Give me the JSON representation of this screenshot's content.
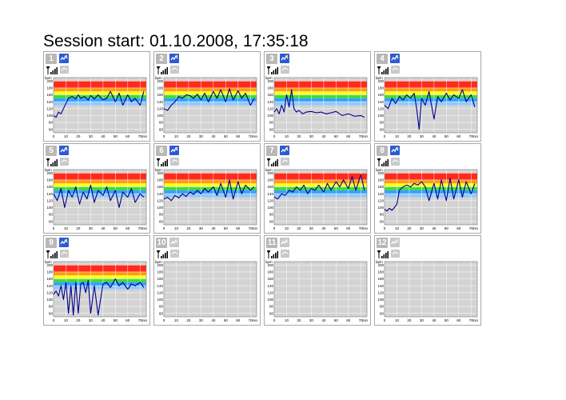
{
  "title": "Session start: 01.10.2008, 17:35:18",
  "axis": {
    "y_unit": "bpm",
    "x_unit": "min",
    "y_ticks": [
      200,
      180,
      160,
      140,
      120,
      100,
      80,
      60
    ],
    "x_ticks": [
      0,
      10,
      20,
      30,
      40,
      50,
      60,
      70
    ],
    "y_range": [
      50,
      210
    ],
    "x_range": [
      0,
      75
    ]
  },
  "zones": [
    {
      "from": 180,
      "to": 200,
      "color": "#ff2a1a"
    },
    {
      "from": 170,
      "to": 180,
      "color": "#ff9a1a"
    },
    {
      "from": 160,
      "to": 170,
      "color": "#ffff20"
    },
    {
      "from": 150,
      "to": 160,
      "color": "#3ddc3d"
    },
    {
      "from": 140,
      "to": 150,
      "color": "#3aa0ff"
    },
    {
      "from": 130,
      "to": 140,
      "color": "#8fc8ff"
    }
  ],
  "colors": {
    "line": "#00008b",
    "plot_bg": "#d3d3d3",
    "grid": "#ffffff",
    "logo": "#2a5bd7",
    "number_badge": "#b8b8b8"
  },
  "icons": {
    "signal": "signal-icon",
    "device": "device-icon",
    "logo": "heart-logo-icon"
  },
  "panels": [
    {
      "number": "1",
      "active": true
    },
    {
      "number": "2",
      "active": true
    },
    {
      "number": "3",
      "active": true
    },
    {
      "number": "4",
      "active": true
    },
    {
      "number": "5",
      "active": true
    },
    {
      "number": "6",
      "active": true
    },
    {
      "number": "7",
      "active": true
    },
    {
      "number": "8",
      "active": true
    },
    {
      "number": "9",
      "active": true
    },
    {
      "number": "10",
      "active": false
    },
    {
      "number": "11",
      "active": false
    },
    {
      "number": "12",
      "active": false
    }
  ],
  "chart_data": [
    {
      "type": "line",
      "panel": "1",
      "xlabel": "min",
      "ylabel": "bpm",
      "ylim": [
        50,
        210
      ],
      "xlim": [
        0,
        75
      ],
      "series": [
        {
          "x": [
            0,
            2,
            4,
            6,
            8,
            10,
            12,
            15,
            18,
            20,
            22,
            25,
            28,
            30,
            33,
            36,
            40,
            43,
            46,
            50,
            53,
            56,
            60,
            63,
            66,
            70,
            73
          ],
          "y": [
            100,
            95,
            110,
            105,
            120,
            135,
            150,
            155,
            148,
            160,
            150,
            155,
            145,
            158,
            148,
            160,
            145,
            150,
            170,
            140,
            165,
            130,
            160,
            140,
            150,
            130,
            170
          ]
        }
      ]
    },
    {
      "type": "line",
      "panel": "2",
      "xlabel": "min",
      "ylabel": "bpm",
      "ylim": [
        50,
        210
      ],
      "xlim": [
        0,
        75
      ],
      "series": [
        {
          "x": [
            0,
            3,
            6,
            9,
            12,
            15,
            18,
            21,
            24,
            27,
            30,
            33,
            36,
            40,
            43,
            46,
            50,
            53,
            56,
            60,
            63,
            66,
            70,
            73
          ],
          "y": [
            120,
            115,
            130,
            140,
            155,
            150,
            160,
            158,
            150,
            162,
            145,
            165,
            140,
            170,
            150,
            175,
            140,
            178,
            145,
            172,
            150,
            165,
            130,
            150
          ]
        }
      ]
    },
    {
      "type": "line",
      "panel": "3",
      "xlabel": "min",
      "ylabel": "bpm",
      "ylim": [
        50,
        210
      ],
      "xlim": [
        0,
        75
      ],
      "series": [
        {
          "x": [
            0,
            2,
            4,
            6,
            8,
            10,
            12,
            14,
            16,
            18,
            20,
            23,
            26,
            30,
            34,
            38,
            42,
            46,
            50,
            55,
            60,
            65,
            70,
            73
          ],
          "y": [
            110,
            120,
            105,
            130,
            110,
            160,
            125,
            175,
            120,
            110,
            115,
            105,
            110,
            112,
            108,
            110,
            105,
            108,
            112,
            100,
            105,
            98,
            100,
            95
          ]
        }
      ]
    },
    {
      "type": "line",
      "panel": "4",
      "xlabel": "min",
      "ylabel": "bpm",
      "ylim": [
        50,
        210
      ],
      "xlim": [
        0,
        75
      ],
      "series": [
        {
          "x": [
            0,
            3,
            6,
            9,
            12,
            15,
            18,
            21,
            24,
            26,
            28,
            30,
            33,
            36,
            40,
            43,
            46,
            50,
            53,
            56,
            60,
            63,
            66,
            70,
            73
          ],
          "y": [
            130,
            120,
            150,
            135,
            155,
            145,
            160,
            150,
            165,
            120,
            60,
            150,
            130,
            170,
            90,
            155,
            140,
            165,
            145,
            160,
            150,
            175,
            140,
            160,
            125
          ]
        }
      ]
    },
    {
      "type": "line",
      "panel": "5",
      "xlabel": "min",
      "ylabel": "bpm",
      "ylim": [
        50,
        210
      ],
      "xlim": [
        0,
        75
      ],
      "series": [
        {
          "x": [
            0,
            3,
            6,
            9,
            12,
            15,
            18,
            21,
            24,
            27,
            30,
            33,
            36,
            40,
            43,
            46,
            50,
            53,
            56,
            60,
            63,
            66,
            70,
            73
          ],
          "y": [
            140,
            120,
            155,
            100,
            150,
            130,
            160,
            110,
            145,
            125,
            165,
            115,
            150,
            135,
            160,
            120,
            150,
            100,
            145,
            130,
            155,
            115,
            140,
            130
          ]
        }
      ]
    },
    {
      "type": "line",
      "panel": "6",
      "xlabel": "min",
      "ylabel": "bpm",
      "ylim": [
        50,
        210
      ],
      "xlim": [
        0,
        75
      ],
      "series": [
        {
          "x": [
            0,
            3,
            6,
            9,
            12,
            15,
            18,
            21,
            24,
            27,
            30,
            33,
            36,
            40,
            43,
            46,
            50,
            53,
            56,
            60,
            63,
            66,
            70,
            73
          ],
          "y": [
            125,
            130,
            120,
            135,
            128,
            140,
            132,
            145,
            138,
            150,
            140,
            155,
            145,
            160,
            135,
            170,
            130,
            180,
            125,
            175,
            140,
            165,
            150,
            160
          ]
        }
      ]
    },
    {
      "type": "line",
      "panel": "7",
      "xlabel": "min",
      "ylabel": "bpm",
      "ylim": [
        50,
        210
      ],
      "xlim": [
        0,
        75
      ],
      "series": [
        {
          "x": [
            0,
            3,
            6,
            9,
            12,
            15,
            18,
            21,
            24,
            27,
            30,
            33,
            36,
            40,
            43,
            46,
            50,
            53,
            56,
            60,
            63,
            66,
            70,
            73
          ],
          "y": [
            130,
            125,
            140,
            135,
            150,
            145,
            160,
            150,
            165,
            140,
            155,
            150,
            165,
            145,
            170,
            150,
            175,
            160,
            180,
            155,
            190,
            150,
            195,
            150
          ]
        }
      ]
    },
    {
      "type": "line",
      "panel": "8",
      "xlabel": "min",
      "ylabel": "bpm",
      "ylim": [
        50,
        210
      ],
      "xlim": [
        0,
        75
      ],
      "series": [
        {
          "x": [
            0,
            2,
            4,
            6,
            8,
            10,
            12,
            15,
            18,
            21,
            24,
            27,
            30,
            33,
            36,
            40,
            43,
            46,
            50,
            53,
            56,
            60,
            63,
            66,
            70,
            73
          ],
          "y": [
            95,
            90,
            98,
            92,
            100,
            110,
            150,
            160,
            165,
            160,
            170,
            165,
            175,
            160,
            120,
            170,
            125,
            180,
            120,
            185,
            125,
            180,
            130,
            175,
            140,
            170
          ]
        }
      ]
    },
    {
      "type": "line",
      "panel": "9",
      "xlabel": "min",
      "ylabel": "bpm",
      "ylim": [
        50,
        210
      ],
      "xlim": [
        0,
        75
      ],
      "series": [
        {
          "x": [
            0,
            2,
            4,
            6,
            8,
            10,
            12,
            14,
            16,
            18,
            20,
            22,
            24,
            26,
            28,
            30,
            33,
            36,
            40,
            43,
            46,
            50,
            53,
            56,
            60,
            63,
            66,
            70,
            73
          ],
          "y": [
            115,
            125,
            110,
            140,
            100,
            150,
            60,
            140,
            55,
            150,
            60,
            145,
            150,
            120,
            155,
            60,
            140,
            55,
            145,
            150,
            135,
            160,
            140,
            150,
            130,
            145,
            140,
            150,
            135
          ]
        }
      ]
    },
    {
      "type": "line",
      "panel": "10",
      "xlabel": "min",
      "ylabel": "bpm",
      "ylim": [
        50,
        210
      ],
      "xlim": [
        0,
        75
      ],
      "series": []
    },
    {
      "type": "line",
      "panel": "11",
      "xlabel": "min",
      "ylabel": "bpm",
      "ylim": [
        50,
        210
      ],
      "xlim": [
        0,
        75
      ],
      "series": []
    },
    {
      "type": "line",
      "panel": "12",
      "xlabel": "min",
      "ylabel": "bpm",
      "ylim": [
        50,
        210
      ],
      "xlim": [
        0,
        75
      ],
      "series": []
    }
  ]
}
